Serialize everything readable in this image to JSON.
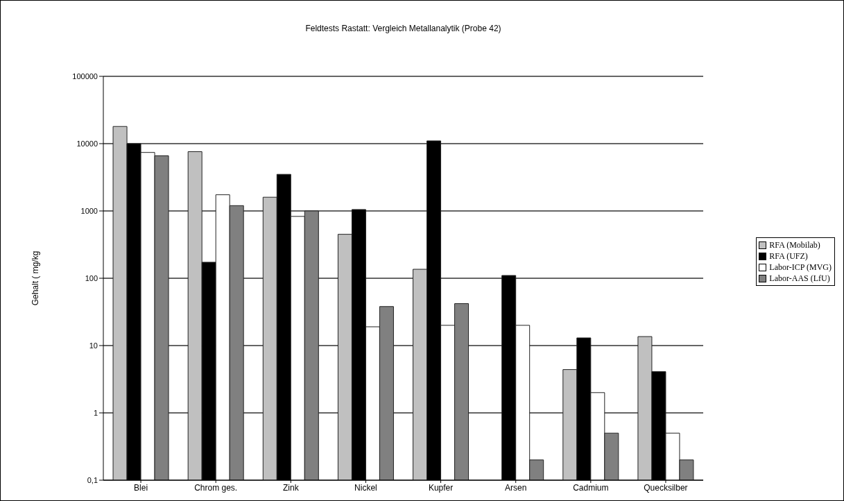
{
  "chart_data": {
    "type": "bar",
    "title": "Feldtests Rastatt: Vergleich Metallanalytik (Probe 42)",
    "ylabel": "Gehalt ( mg/kg",
    "categories": [
      "Blei",
      "Chrom ges.",
      "Zink",
      "Nickel",
      "Kupfer",
      "Arsen",
      "Cadmium",
      "Quecksilber"
    ],
    "series": [
      {
        "name": "RFA (Mobilab)",
        "color": "#c0c0c0",
        "values": [
          18000,
          7600,
          1600,
          450,
          136,
          null,
          4.4,
          13.6
        ]
      },
      {
        "name": "RFA (UFZ)",
        "color": "#000000",
        "values": [
          10000,
          173,
          3500,
          1050,
          11000,
          110,
          13,
          4.1
        ]
      },
      {
        "name": "Labor-ICP (MVG)",
        "color": "#ffffff",
        "values": [
          7400,
          1740,
          830,
          19,
          20,
          20,
          2,
          0.5
        ]
      },
      {
        "name": "Labor-AAS (LfU)",
        "color": "#808080",
        "values": [
          6600,
          1200,
          1000,
          38,
          42,
          0.2,
          0.5,
          0.2
        ]
      }
    ],
    "log": "y",
    "ylim": [
      0.1,
      100000
    ],
    "yticks": [
      {
        "value": 0.1,
        "label": "0,1"
      },
      1,
      10,
      100,
      1000,
      10000,
      100000
    ],
    "grid": "y",
    "legend": "right"
  }
}
